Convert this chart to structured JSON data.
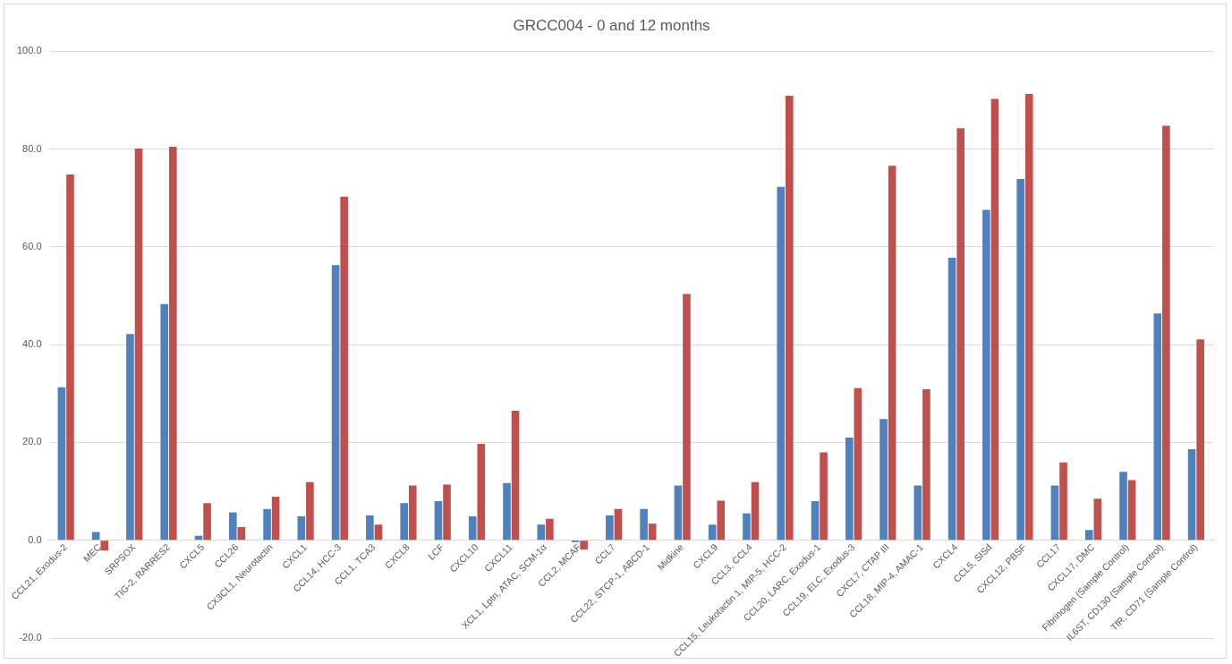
{
  "chart_data": {
    "type": "bar",
    "title": "GRCC004 - 0 and 12 months",
    "categories": [
      "CCL21, Exodus-2",
      "MEC",
      "SRPSOX",
      "TIG-2, RARRES2",
      "CXCL5",
      "CCL26",
      "CX3CL1, Neurotactin",
      "CXCL1",
      "CCL14, HCC-3",
      "CCL1, TCA3",
      "CXCL8",
      "LCF",
      "CXCL10",
      "CXCL11",
      "XCL1, Lptn, ATAC, SCM-1α",
      "CCL2, MCAF",
      "CCL7",
      "CCL22, STCP-1, ABCD-1",
      "Midkine",
      "CXCL9",
      "CCL3, CCL4",
      "CCL15, Leukotactin 1, MIP-5, HCC-2",
      "CCL20, LARC, Exodus-1",
      "CCL19, ELC, Exodus-3",
      "CXCL7, CTAP III",
      "CCL18, MIP-4, AMAC-1",
      "CXCL4",
      "CCL5, SISd",
      "CXCL12, PBSF",
      "CCL17",
      "CXCL17, DMC",
      "Fibrinogen (Sample Control)",
      "IL6ST, CD130 (Sample Control)",
      "TfR, CD71 (Sample Control)"
    ],
    "series": [
      {
        "color": "#4f81bd",
        "values": [
          31.3,
          1.7,
          42.2,
          48.3,
          0.9,
          5.7,
          6.4,
          4.9,
          56.3,
          5.1,
          7.6,
          8.0,
          4.9,
          11.7,
          3.2,
          -0.4,
          5.1,
          6.4,
          11.2,
          3.2,
          5.5,
          72.3,
          8.0,
          21.0,
          24.8,
          11.2,
          57.8,
          67.6,
          73.9,
          11.2,
          2.1,
          14.0,
          46.4,
          18.6
        ]
      },
      {
        "color": "#c0504d",
        "values": [
          74.8,
          -2.1,
          80.1,
          80.5,
          7.6,
          2.7,
          8.9,
          11.9,
          70.3,
          3.2,
          11.2,
          11.4,
          19.7,
          26.5,
          4.4,
          -1.9,
          6.4,
          3.4,
          50.4,
          8.1,
          11.9,
          90.9,
          18.0,
          31.1,
          76.6,
          30.9,
          84.3,
          90.3,
          91.3,
          15.9,
          8.5,
          12.3,
          84.8,
          41.1
        ]
      }
    ],
    "ylim": [
      -20,
      100
    ],
    "yticks": [
      {
        "value": -20,
        "label": "-20.0"
      },
      {
        "value": 0,
        "label": "0.0"
      },
      {
        "value": 20,
        "label": "20.0"
      },
      {
        "value": 40,
        "label": "40.0"
      },
      {
        "value": 60,
        "label": "60.0"
      },
      {
        "value": 80,
        "label": "80.0"
      },
      {
        "value": 100,
        "label": "100.0"
      }
    ],
    "grid": "y",
    "legend": false
  }
}
